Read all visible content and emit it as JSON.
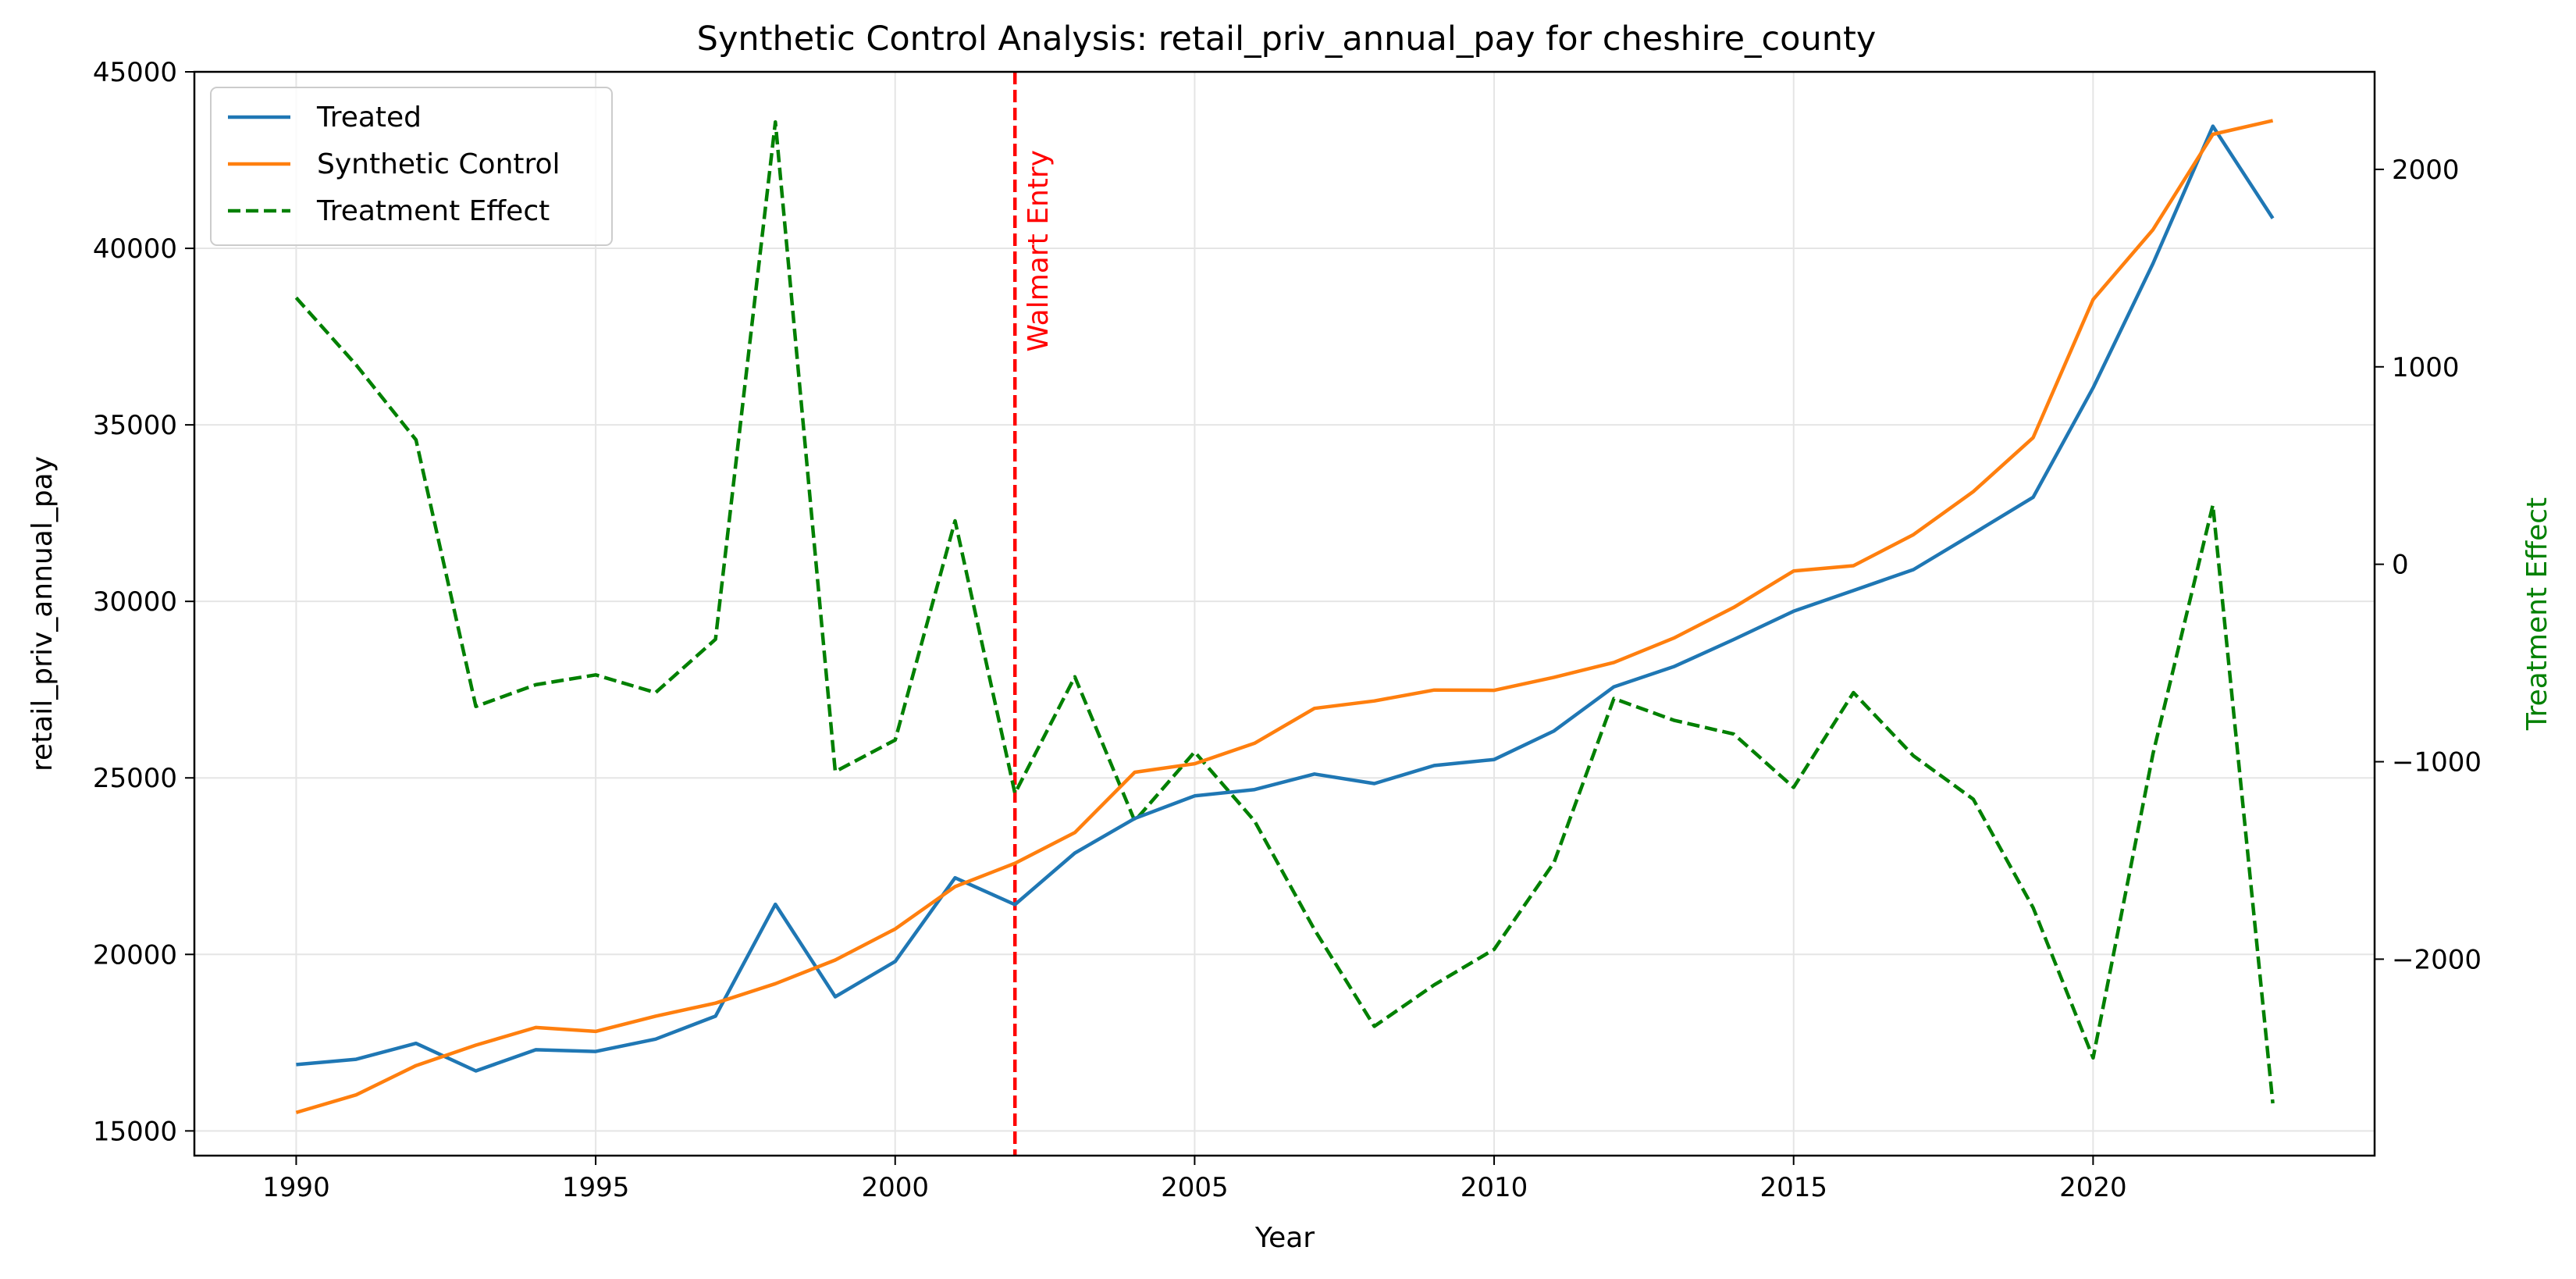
{
  "chart_data": {
    "type": "line",
    "title": "Synthetic Control Analysis: retail_priv_annual_pay for cheshire_county",
    "xlabel": "Year",
    "ylabel": "retail_priv_annual_pay",
    "y2label": "Treatment Effect",
    "xlim": [
      1988.3,
      2024.7
    ],
    "ylim": [
      14300,
      45000
    ],
    "y2lim": [
      -2995,
      2494
    ],
    "x_ticks": [
      1990,
      1995,
      2000,
      2005,
      2010,
      2015,
      2020
    ],
    "y_ticks": [
      15000,
      20000,
      25000,
      30000,
      35000,
      40000,
      45000
    ],
    "y2_ticks": [
      -2000,
      -1000,
      0,
      1000,
      2000
    ],
    "grid": true,
    "legend_position": "upper-left",
    "x": [
      1990,
      1991,
      1992,
      1993,
      1994,
      1995,
      1996,
      1997,
      1998,
      1999,
      2000,
      2001,
      2002,
      2003,
      2004,
      2005,
      2006,
      2007,
      2008,
      2009,
      2010,
      2011,
      2012,
      2013,
      2014,
      2015,
      2016,
      2017,
      2018,
      2019,
      2020,
      2021,
      2022,
      2023
    ],
    "series": [
      {
        "name": "Treated",
        "axis": "left",
        "color": "#1f77b4",
        "style": "solid",
        "values": [
          16880,
          17030,
          17480,
          16700,
          17300,
          17250,
          17600,
          18250,
          21420,
          18800,
          19800,
          22170,
          21410,
          22870,
          23850,
          24490,
          24670,
          25110,
          24840,
          25350,
          25520,
          26330,
          27580,
          28150,
          28920,
          29720,
          30310,
          30900,
          31920,
          32950,
          36050,
          39570,
          43460,
          40850
        ]
      },
      {
        "name": "Synthetic Control",
        "axis": "left",
        "color": "#ff7f0e",
        "style": "solid",
        "values": [
          15520,
          16020,
          16850,
          17430,
          17930,
          17820,
          18250,
          18620,
          19170,
          19840,
          20720,
          21920,
          22580,
          23450,
          25160,
          25400,
          25980,
          26970,
          27180,
          27490,
          27480,
          27850,
          28270,
          28960,
          29830,
          30860,
          31010,
          31890,
          33110,
          34640,
          38550,
          40530,
          43230,
          43620
        ]
      },
      {
        "name": "Treatment Effect",
        "axis": "right",
        "color": "#008000",
        "style": "dashed",
        "values": [
          1350,
          1010,
          630,
          -720,
          -610,
          -560,
          -650,
          -380,
          2240,
          -1050,
          -890,
          220,
          -1160,
          -570,
          -1300,
          -950,
          -1300,
          -1850,
          -2340,
          -2130,
          -1950,
          -1510,
          -680,
          -790,
          -860,
          -1130,
          -650,
          -970,
          -1190,
          -1740,
          -2500,
          -960,
          300,
          -2730
        ]
      }
    ],
    "annotations": [
      {
        "type": "vline",
        "x": 2002,
        "label": "Walmart Entry",
        "color": "#ff0000"
      }
    ]
  }
}
